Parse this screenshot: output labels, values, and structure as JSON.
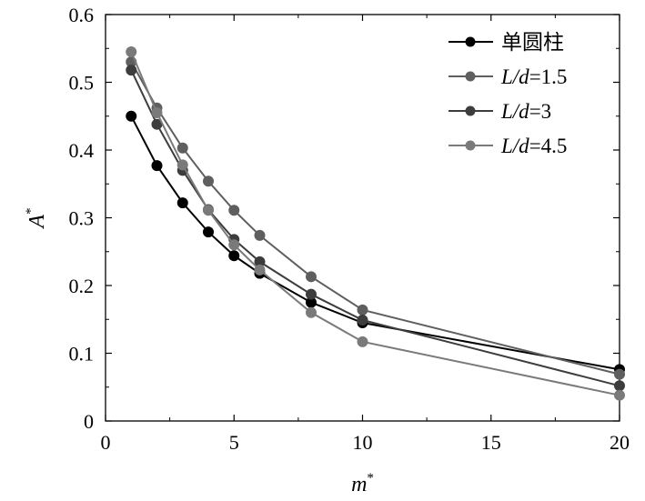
{
  "chart_data": {
    "type": "line",
    "xlabel": "m",
    "xlabel_sup": "*",
    "ylabel": "A",
    "ylabel_sup": "*",
    "xlim": [
      0,
      20
    ],
    "ylim": [
      0,
      0.6
    ],
    "xticks": [
      0,
      5,
      10,
      15,
      20
    ],
    "xtick_labels": [
      "0",
      "5",
      "10",
      "15",
      "20"
    ],
    "yticks": [
      0,
      0.1,
      0.2,
      0.3,
      0.4,
      0.5,
      0.6
    ],
    "ytick_labels": [
      "0",
      "0.1",
      "0.2",
      "0.3",
      "0.4",
      "0.5",
      "0.6"
    ],
    "grid": false,
    "legend_position": "top-right",
    "series": [
      {
        "name": "单圆柱",
        "color": "#000000",
        "x": [
          1,
          2,
          3,
          4,
          5,
          6,
          8,
          10,
          20
        ],
        "y": [
          0.45,
          0.377,
          0.322,
          0.279,
          0.244,
          0.218,
          0.175,
          0.145,
          0.076
        ]
      },
      {
        "name": "L/d=1.5",
        "name_italic": "L/d",
        "name_rest": "=1.5",
        "color": "#5f5f5f",
        "x": [
          1,
          2,
          3,
          4,
          5,
          6,
          8,
          10,
          20
        ],
        "y": [
          0.53,
          0.462,
          0.403,
          0.354,
          0.311,
          0.274,
          0.213,
          0.164,
          0.069
        ]
      },
      {
        "name": "L/d=3",
        "name_italic": "L/d",
        "name_rest": "=3",
        "color": "#3d3d3d",
        "x": [
          1,
          2,
          3,
          4,
          5,
          6,
          8,
          10,
          20
        ],
        "y": [
          0.518,
          0.438,
          0.37,
          0.312,
          0.268,
          0.235,
          0.187,
          0.149,
          0.052
        ]
      },
      {
        "name": "L/d=4.5",
        "name_italic": "L/d",
        "name_rest": "=4.5",
        "color": "#7a7a7a",
        "x": [
          1,
          2,
          3,
          4,
          5,
          6,
          8,
          10,
          20
        ],
        "y": [
          0.545,
          0.455,
          0.378,
          0.311,
          0.26,
          0.223,
          0.16,
          0.117,
          0.038
        ]
      }
    ]
  }
}
